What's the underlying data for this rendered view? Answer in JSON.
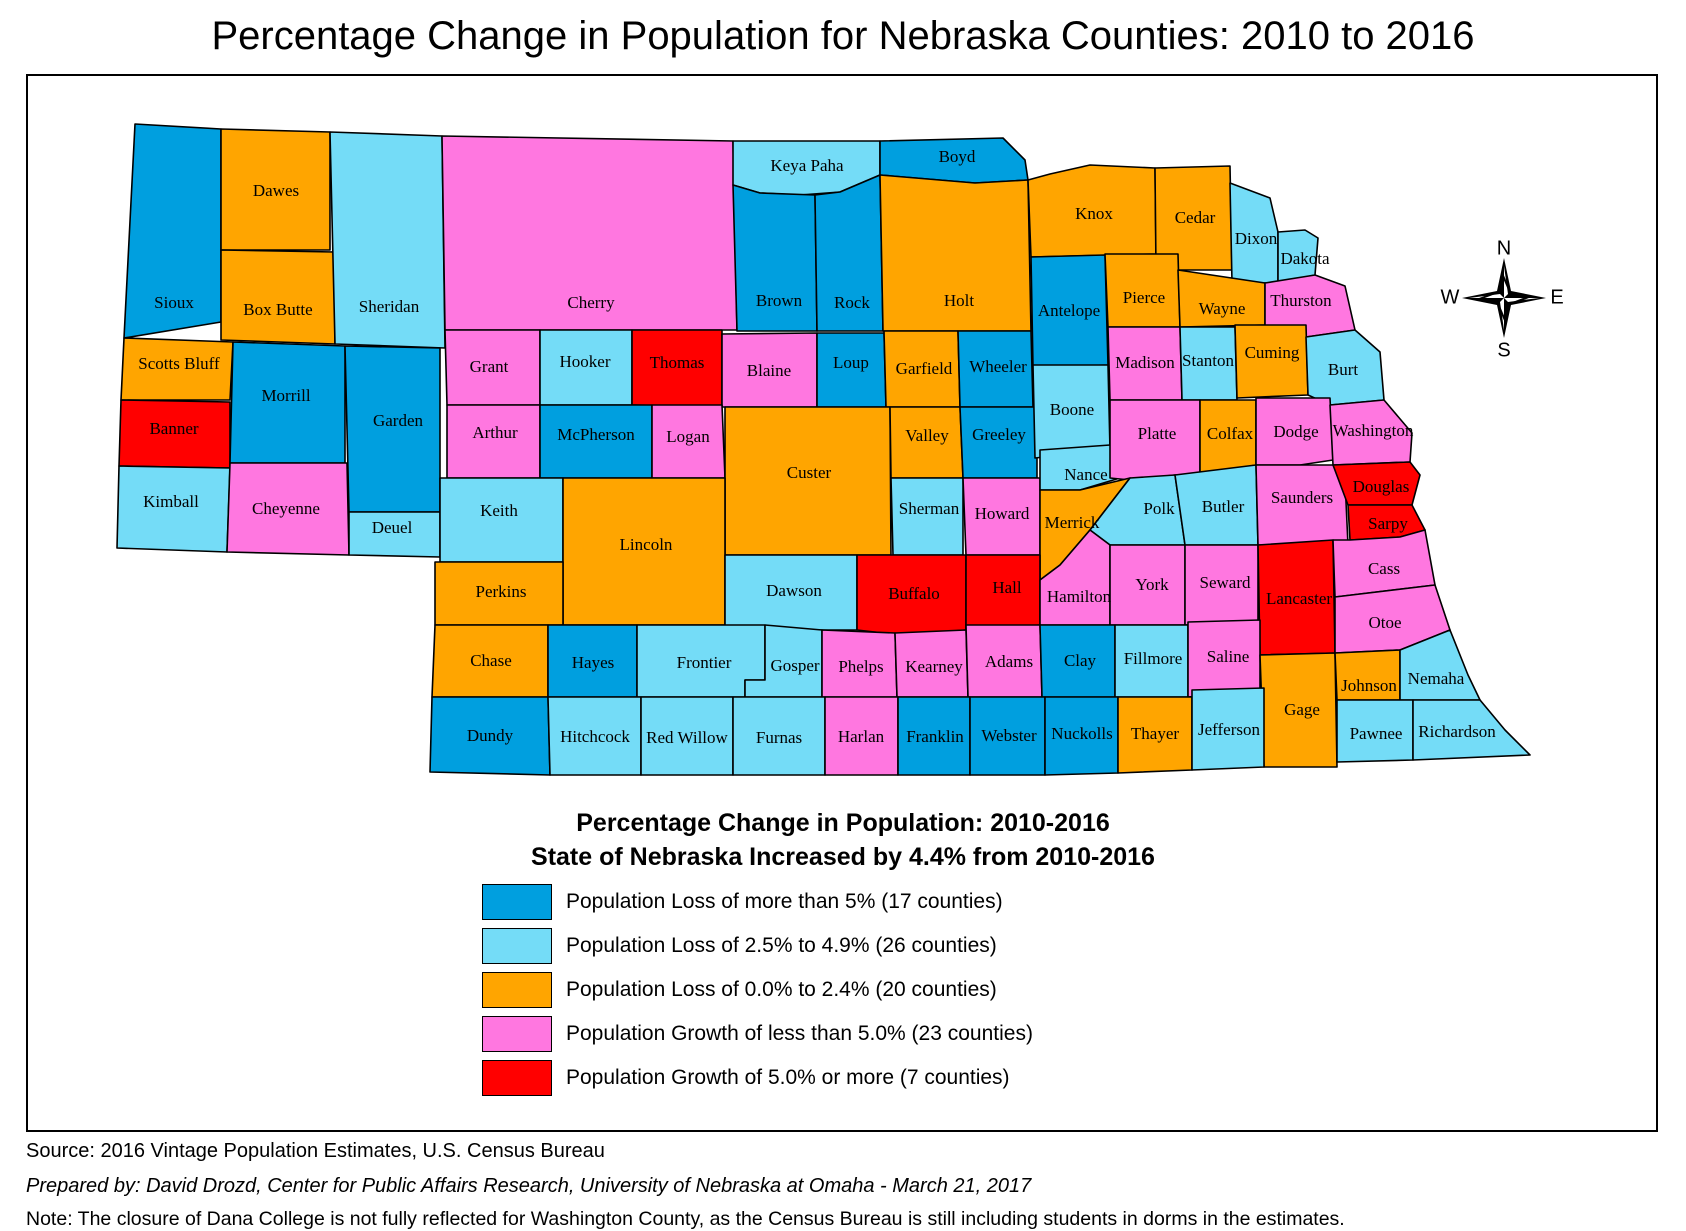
{
  "title": "Percentage Change in Population for Nebraska Counties: 2010 to 2016",
  "legend": {
    "title_line1": "Percentage Change in Population: 2010-2016",
    "title_line2": "State of Nebraska Increased by 4.4% from 2010-2016",
    "items": [
      {
        "label": "Population Loss of more than 5% (17 counties)",
        "color": "#009fdf"
      },
      {
        "label": "Population Loss of 2.5% to 4.9% (26 counties)",
        "color": "#74dcf7"
      },
      {
        "label": "Population Loss of 0.0% to 2.4% (20 counties)",
        "color": "#ffa500"
      },
      {
        "label": "Population Growth of less than 5.0% (23 counties)",
        "color": "#ff77e0"
      },
      {
        "label": "Population Growth of 5.0% or more (7 counties)",
        "color": "#ff0000"
      }
    ]
  },
  "compass": {
    "n": "N",
    "s": "S",
    "e": "E",
    "w": "W"
  },
  "counties": {
    "sioux": "Sioux",
    "dawes": "Dawes",
    "box_butte": "Box Butte",
    "sheridan": "Sheridan",
    "cherry": "Cherry",
    "keya_paha": "Keya Paha",
    "boyd": "Boyd",
    "brown": "Brown",
    "rock": "Rock",
    "holt": "Holt",
    "knox": "Knox",
    "cedar": "Cedar",
    "dixon": "Dixon",
    "dakota": "Dakota",
    "scotts_bluff": "Scotts Bluff",
    "morrill": "Morrill",
    "garden": "Garden",
    "banner": "Banner",
    "kimball": "Kimball",
    "cheyenne": "Cheyenne",
    "deuel": "Deuel",
    "grant": "Grant",
    "hooker": "Hooker",
    "thomas": "Thomas",
    "blaine": "Blaine",
    "loup": "Loup",
    "garfield": "Garfield",
    "wheeler": "Wheeler",
    "antelope": "Antelope",
    "pierce": "Pierce",
    "wayne": "Wayne",
    "thurston": "Thurston",
    "arthur": "Arthur",
    "mcpherson": "McPherson",
    "logan": "Logan",
    "custer": "Custer",
    "valley": "Valley",
    "greeley": "Greeley",
    "boone": "Boone",
    "madison": "Madison",
    "stanton": "Stanton",
    "cuming": "Cuming",
    "burt": "Burt",
    "keith": "Keith",
    "lincoln": "Lincoln",
    "sherman": "Sherman",
    "howard": "Howard",
    "nance": "Nance",
    "platte": "Platte",
    "colfax": "Colfax",
    "dodge": "Dodge",
    "washington": "Washington",
    "merrick": "Merrick",
    "polk": "Polk",
    "butler": "Butler",
    "saunders": "Saunders",
    "douglas": "Douglas",
    "sarpy": "Sarpy",
    "perkins": "Perkins",
    "dawson": "Dawson",
    "buffalo": "Buffalo",
    "hall": "Hall",
    "hamilton": "Hamilton",
    "york": "York",
    "seward": "Seward",
    "lancaster": "Lancaster",
    "cass": "Cass",
    "otoe": "Otoe",
    "chase": "Chase",
    "hayes": "Hayes",
    "frontier": "Frontier",
    "gosper": "Gosper",
    "phelps": "Phelps",
    "kearney": "Kearney",
    "adams": "Adams",
    "clay": "Clay",
    "fillmore": "Fillmore",
    "saline": "Saline",
    "gage": "Gage",
    "johnson": "Johnson",
    "nemaha": "Nemaha",
    "dundy": "Dundy",
    "hitchcock": "Hitchcock",
    "red_willow": "Red Willow",
    "furnas": "Furnas",
    "harlan": "Harlan",
    "franklin": "Franklin",
    "webster": "Webster",
    "nuckolls": "Nuckolls",
    "thayer": "Thayer",
    "jefferson": "Jefferson",
    "pawnee": "Pawnee",
    "richardson": "Richardson"
  },
  "footer": {
    "source": "Source: 2016 Vintage Population Estimates, U.S. Census Bureau",
    "prepared": "Prepared by: David Drozd, Center for Public Affairs Research, University of Nebraska at Omaha - March 21, 2017",
    "note": "Note: The closure of Dana College is not fully reflected for Washington County, as the Census Bureau is still including students in dorms in the estimates."
  }
}
